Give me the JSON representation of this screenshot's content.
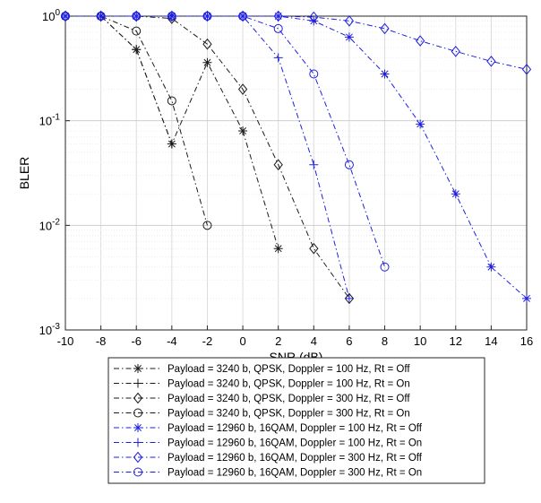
{
  "chart_data": {
    "type": "line",
    "xlabel": "SNR (dB)",
    "ylabel": "BLER",
    "xlim": [
      -10,
      16
    ],
    "ylim": [
      0.001,
      1
    ],
    "y_scale": "log",
    "x_ticks": [
      -10,
      -8,
      -6,
      -4,
      -2,
      0,
      2,
      4,
      6,
      8,
      10,
      12,
      14,
      16
    ],
    "x_tick_labels": [
      "-10",
      "-8",
      "-6",
      "-4",
      "-2",
      "0",
      "2",
      "4",
      "6",
      "8",
      "10",
      "12",
      "14",
      "16"
    ],
    "y_ticks": [
      0.001,
      0.01,
      0.1,
      1
    ],
    "y_tick_labels": [
      {
        "base": "10",
        "exp": "-3"
      },
      {
        "base": "10",
        "exp": "-2"
      },
      {
        "base": "10",
        "exp": "-1"
      },
      {
        "base": "10",
        "exp": "0"
      }
    ],
    "grid": true,
    "legend_position": "below plot",
    "series": [
      {
        "name": "Payload = 3240 b, QPSK, Doppler = 100 Hz, Rt = Off",
        "color": "#1a1a1a",
        "marker": "asterisk",
        "x": [
          -10,
          -8,
          -6,
          -4,
          -2,
          0,
          2
        ],
        "y": [
          1,
          1,
          0.48,
          0.06,
          0.36,
          0.08,
          0.006
        ]
      },
      {
        "name": "Payload = 3240 b, QPSK, Doppler = 100 Hz, Rt = On",
        "color": "#1a1a1a",
        "marker": "plus",
        "x": [
          -10,
          -8,
          -6,
          -4
        ],
        "y": [
          1,
          1,
          0.48,
          0.06
        ]
      },
      {
        "name": "Payload = 3240 b, QPSK, Doppler = 300 Hz, Rt = Off",
        "color": "#1a1a1a",
        "marker": "diamond",
        "x": [
          -10,
          -8,
          -6,
          -4,
          -2,
          0,
          2,
          4,
          6
        ],
        "y": [
          1,
          1,
          1,
          0.95,
          0.54,
          0.2,
          0.038,
          0.006,
          0.002
        ]
      },
      {
        "name": "Payload = 3240 b, QPSK, Doppler = 300 Hz, Rt = On",
        "color": "#1a1a1a",
        "marker": "circle",
        "x": [
          -10,
          -8,
          -6,
          -4,
          -2
        ],
        "y": [
          1,
          1,
          0.72,
          0.155,
          0.01
        ]
      },
      {
        "name": "Payload = 12960 b, 16QAM, Doppler = 100 Hz, Rt = Off",
        "color": "#1f1fe0",
        "marker": "asterisk",
        "x": [
          -10,
          -8,
          -6,
          -4,
          -2,
          0,
          2,
          4,
          6,
          8,
          10,
          12,
          14,
          16
        ],
        "y": [
          1,
          1,
          1,
          1,
          1,
          1,
          1,
          0.9,
          0.63,
          0.28,
          0.093,
          0.02,
          0.004,
          0.002
        ]
      },
      {
        "name": "Payload = 12960 b, 16QAM, Doppler = 100 Hz, Rt = On",
        "color": "#1f1fe0",
        "marker": "plus",
        "x": [
          -10,
          -8,
          -6,
          -4,
          -2,
          0,
          2,
          4,
          6
        ],
        "y": [
          1,
          1,
          1,
          1,
          1,
          1,
          0.4,
          0.038,
          0.002
        ]
      },
      {
        "name": "Payload = 12960 b, 16QAM, Doppler = 300 Hz, Rt = Off",
        "color": "#1f1fe0",
        "marker": "diamond",
        "x": [
          -10,
          -8,
          -6,
          -4,
          -2,
          0,
          2,
          4,
          6,
          8,
          10,
          12,
          14,
          16
        ],
        "y": [
          1,
          1,
          1,
          1,
          1,
          1,
          1,
          0.98,
          0.9,
          0.76,
          0.58,
          0.46,
          0.37,
          0.31
        ]
      },
      {
        "name": "Payload = 12960 b, 16QAM, Doppler = 300 Hz, Rt = On",
        "color": "#1f1fe0",
        "marker": "circle",
        "x": [
          -10,
          -8,
          -6,
          -4,
          -2,
          0,
          2,
          4,
          6,
          8
        ],
        "y": [
          1,
          1,
          1,
          1,
          1,
          1,
          0.76,
          0.28,
          0.038,
          0.004
        ]
      }
    ]
  }
}
